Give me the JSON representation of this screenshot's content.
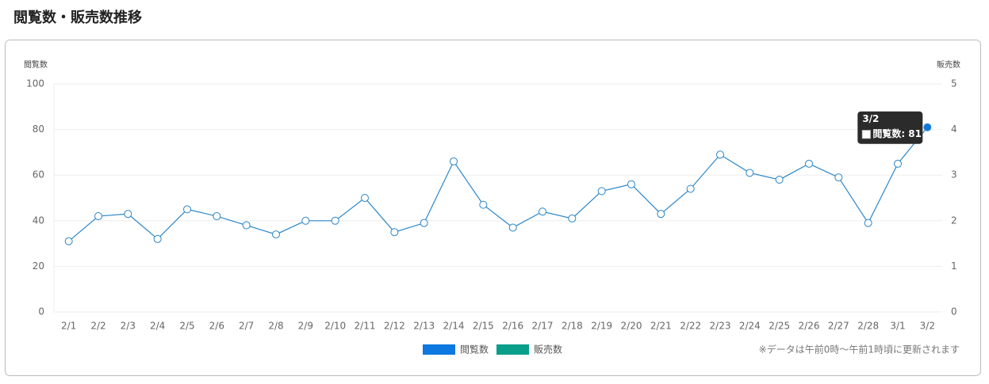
{
  "page_title": "閲覧数・販売数推移",
  "chart_data": {
    "type": "line",
    "y_label": "閲覧数",
    "y2_label": "販売数",
    "categories": [
      "2/1",
      "2/2",
      "2/3",
      "2/4",
      "2/5",
      "2/6",
      "2/7",
      "2/8",
      "2/9",
      "2/10",
      "2/11",
      "2/12",
      "2/13",
      "2/14",
      "2/15",
      "2/16",
      "2/17",
      "2/18",
      "2/19",
      "2/20",
      "2/21",
      "2/22",
      "2/23",
      "2/24",
      "2/25",
      "2/26",
      "2/27",
      "2/28",
      "3/1",
      "3/2"
    ],
    "series": [
      {
        "name": "閲覧数",
        "color": "#0d78e0",
        "line_color": "#2a86c9",
        "values": [
          31,
          42,
          43,
          32,
          45,
          42,
          38,
          34,
          40,
          40,
          50,
          35,
          39,
          66,
          47,
          37,
          44,
          41,
          53,
          56,
          43,
          54,
          69,
          61,
          58,
          65,
          59,
          39,
          65,
          81
        ]
      },
      {
        "name": "販売数",
        "color": "#0a9f8a",
        "axis": "y2",
        "values": [
          null,
          null,
          null,
          null,
          null,
          null,
          null,
          null,
          null,
          null,
          null,
          null,
          null,
          null,
          null,
          null,
          null,
          null,
          null,
          null,
          null,
          null,
          null,
          null,
          null,
          null,
          null,
          null,
          null,
          null
        ]
      }
    ],
    "ylim": [
      0,
      100
    ],
    "yticks": [
      0,
      20,
      40,
      60,
      80,
      100
    ],
    "y2lim": [
      0,
      5
    ],
    "y2ticks": [
      0,
      1,
      2,
      3,
      4,
      5
    ],
    "grid": true,
    "legend": "bottom",
    "tooltip": {
      "title": "3/2",
      "label": "閲覧数: 81"
    },
    "note": "※データは午前0時〜午前1時頃に更新されます"
  }
}
